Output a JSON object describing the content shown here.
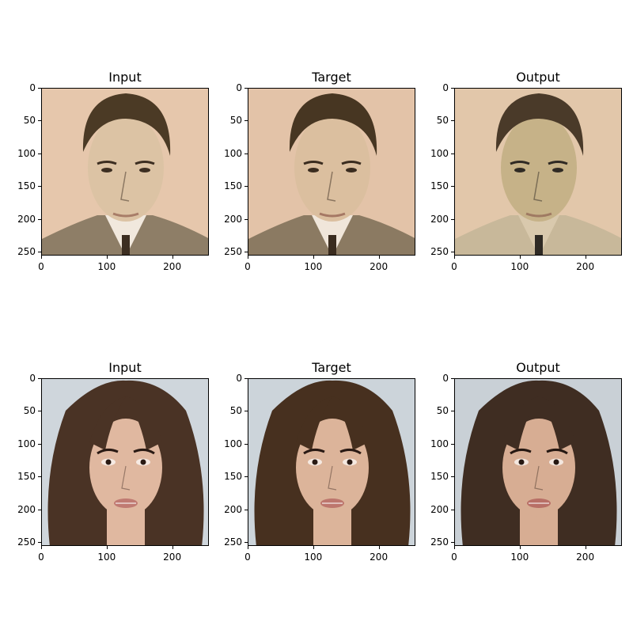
{
  "figure": {
    "rows": [
      {
        "panels": [
          {
            "title": "Input",
            "palette": {
              "bg": "#e6c7ac",
              "skin": "#dcc3a4",
              "hair": "#4b3a25",
              "suit": "#8e7e67",
              "shirt": "#f1e8dd",
              "feature": "#3c2e21",
              "lip": "#a87d68"
            }
          },
          {
            "title": "Target",
            "palette": {
              "bg": "#e3c3a8",
              "skin": "#dbbf9f",
              "hair": "#473622",
              "suit": "#8b7a62",
              "shirt": "#f0e6da",
              "feature": "#3a2c1f",
              "lip": "#a57864"
            }
          },
          {
            "title": "Output",
            "palette": {
              "bg": "#e2c7aa",
              "skin": "#c6b288",
              "hair": "#4a3a29",
              "suit": "#c8b89a",
              "shirt": "#d9c9ad",
              "feature": "#2f2a24",
              "lip": "#9f7a62"
            }
          }
        ]
      },
      {
        "panels": [
          {
            "title": "Input",
            "palette": {
              "bg": "#cfd6dc",
              "skin": "#e0b8a0",
              "hair": "#4a3325",
              "suit": "#3a2a20",
              "shirt": "#e0b8a0",
              "feature": "#2a1a14",
              "lip": "#c07a72"
            }
          },
          {
            "title": "Target",
            "palette": {
              "bg": "#ccd4da",
              "skin": "#dcb49a",
              "hair": "#47301f",
              "suit": "#39291d",
              "shirt": "#dcb49a",
              "feature": "#2a1a14",
              "lip": "#bd766d"
            }
          },
          {
            "title": "Output",
            "palette": {
              "bg": "#c9d0d6",
              "skin": "#d7ad93",
              "hair": "#3f2d22",
              "suit": "#35261c",
              "shirt": "#d7ad93",
              "feature": "#261812",
              "lip": "#b86f66"
            }
          }
        ]
      }
    ],
    "yticks": [
      "0",
      "50",
      "100",
      "150",
      "200",
      "250"
    ],
    "xticks": [
      "0",
      "100",
      "200"
    ]
  }
}
